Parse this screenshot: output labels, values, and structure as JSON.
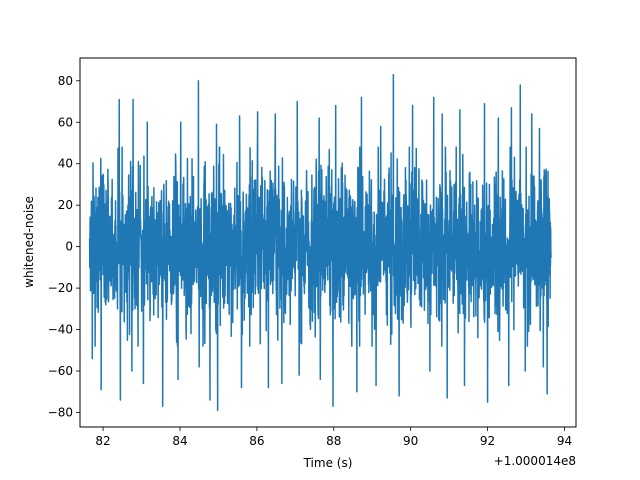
{
  "chart_data": {
    "type": "line",
    "title": "",
    "xlabel": "Time (s)",
    "ylabel": "whitened-noise",
    "x_offset_label": "+1.000014e8",
    "xlim": [
      81.4,
      94.3
    ],
    "ylim": [
      -87,
      91
    ],
    "x_ticks": [
      82,
      84,
      86,
      88,
      90,
      92,
      94
    ],
    "y_ticks": [
      -80,
      -60,
      -40,
      -20,
      0,
      20,
      40,
      60,
      80
    ],
    "grid": false,
    "color": "#1f77b4",
    "series": [
      {
        "x_range": [
          81.65,
          93.65
        ],
        "envelope": {
          "typical_min": -40,
          "typical_max": 40
        },
        "peaks": [
          [
            81.72,
            49
          ],
          [
            81.95,
            56
          ],
          [
            82.42,
            71
          ],
          [
            82.78,
            71
          ],
          [
            83.15,
            60
          ],
          [
            83.55,
            62
          ],
          [
            84.02,
            60
          ],
          [
            84.48,
            80
          ],
          [
            84.95,
            59
          ],
          [
            85.55,
            63
          ],
          [
            86.02,
            65
          ],
          [
            86.48,
            64
          ],
          [
            87.05,
            70
          ],
          [
            87.62,
            62
          ],
          [
            88.05,
            68
          ],
          [
            88.72,
            72
          ],
          [
            89.22,
            58
          ],
          [
            89.55,
            83
          ],
          [
            90.05,
            68
          ],
          [
            90.6,
            72
          ],
          [
            90.82,
            64
          ],
          [
            91.28,
            66
          ],
          [
            91.92,
            69
          ],
          [
            92.28,
            62
          ],
          [
            92.62,
            67
          ],
          [
            92.85,
            78
          ],
          [
            93.15,
            64
          ],
          [
            93.35,
            57
          ],
          [
            93.55,
            58
          ]
        ],
        "troughs": [
          [
            81.72,
            -54
          ],
          [
            81.95,
            -69
          ],
          [
            82.45,
            -74
          ],
          [
            82.75,
            -60
          ],
          [
            83.05,
            -66
          ],
          [
            83.55,
            -77
          ],
          [
            83.95,
            -64
          ],
          [
            84.5,
            -58
          ],
          [
            84.78,
            -74
          ],
          [
            84.98,
            -79
          ],
          [
            85.6,
            -68
          ],
          [
            86.3,
            -68
          ],
          [
            86.65,
            -66
          ],
          [
            87.1,
            -62
          ],
          [
            87.65,
            -64
          ],
          [
            87.98,
            -77
          ],
          [
            88.6,
            -70
          ],
          [
            89.1,
            -67
          ],
          [
            89.7,
            -72
          ],
          [
            90.5,
            -60
          ],
          [
            90.95,
            -73
          ],
          [
            91.4,
            -67
          ],
          [
            92.0,
            -75
          ],
          [
            92.55,
            -67
          ],
          [
            92.98,
            -60
          ],
          [
            93.45,
            -58
          ],
          [
            93.55,
            -71
          ]
        ]
      }
    ]
  }
}
